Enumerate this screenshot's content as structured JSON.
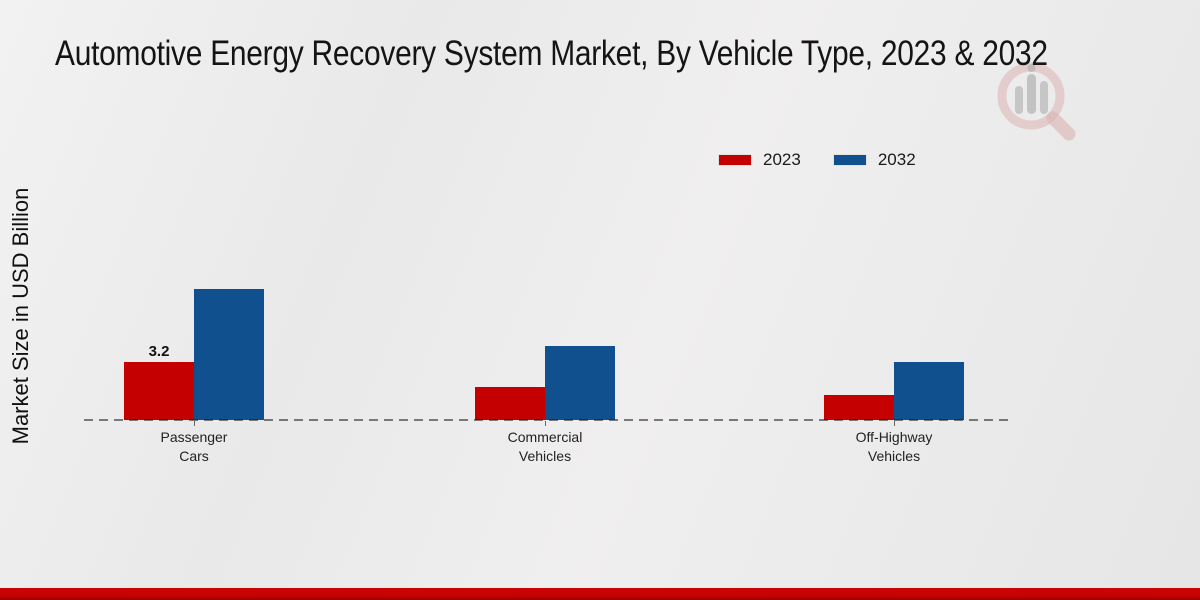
{
  "title": "Automotive Energy Recovery System Market, By Vehicle Type, 2023 & 2032",
  "ylabel": "Market Size in USD Billion",
  "icons": {
    "watermark": "magnifier-bar-chart-logo-icon"
  },
  "colors": {
    "series_2023": "#c40000",
    "series_2032": "#11508f",
    "footer_bar": "#c40202",
    "dashed_baseline": "#555555",
    "background": "#ebebeb"
  },
  "chart_data": {
    "type": "bar",
    "categories": [
      "Passenger Cars",
      "Commercial Vehicles",
      "Off-Highway Vehicles"
    ],
    "categories_lines": [
      [
        "Passenger",
        "Cars"
      ],
      [
        "Commercial",
        "Vehicles"
      ],
      [
        "Off-Highway",
        "Vehicles"
      ]
    ],
    "series": [
      {
        "name": "2023",
        "color": "#c40000",
        "values": [
          3.2,
          1.8,
          1.4
        ]
      },
      {
        "name": "2032",
        "color": "#11508f",
        "values": [
          7.2,
          4.1,
          3.2
        ]
      }
    ],
    "data_labels": [
      {
        "series": "2023",
        "category": "Passenger Cars",
        "text": "3.2"
      }
    ],
    "title": "Automotive Energy Recovery System Market, By Vehicle Type, 2023 & 2032",
    "xlabel": "",
    "ylabel": "Market Size in USD Billion",
    "ylim": [
      0,
      8
    ],
    "grid": false,
    "y_axis_ticks_visible": false,
    "baseline_style": "dashed",
    "legend_position": "upper-right"
  }
}
